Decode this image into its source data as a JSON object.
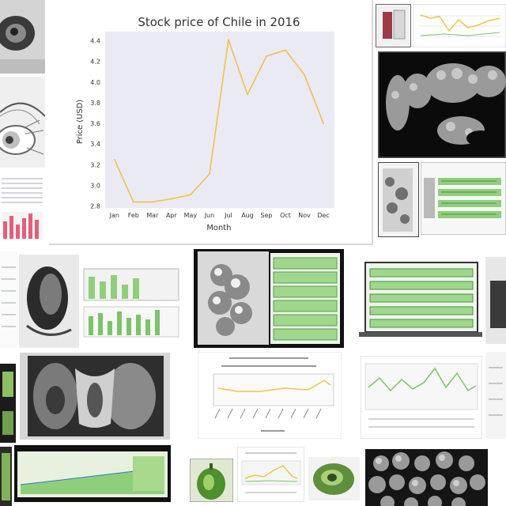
{
  "chart_data": {
    "type": "line",
    "title": "Stock price of Chile in 2016",
    "xlabel": "Month",
    "ylabel": "Price (USD)",
    "categories": [
      "Jan",
      "Feb",
      "Mar",
      "Apr",
      "May",
      "Jun",
      "Jul",
      "Aug",
      "Sep",
      "Oct",
      "Nov",
      "Dec"
    ],
    "series": [
      {
        "values": [
          3.25,
          2.84,
          2.84,
          2.87,
          2.91,
          3.11,
          4.41,
          3.88,
          4.25,
          4.31,
          4.07,
          3.6
        ]
      }
    ],
    "yticks": [
      2.8,
      3.0,
      3.2,
      3.4,
      3.6,
      3.8,
      4.0,
      4.2,
      4.4
    ],
    "ytick_labels": [
      "2.8",
      "3.0",
      "3.2",
      "3.4",
      "3.6",
      "3.8",
      "4.0",
      "4.2",
      "4.4"
    ],
    "ylim": [
      2.78,
      4.49
    ],
    "grid": false,
    "legend": "none",
    "colors": {
      "line": "#efc14d",
      "plot_background": "#eaeaf4"
    }
  },
  "collage": {
    "colors": {
      "accent_green": "#7cc46a",
      "accent_yellow": "#e9c84a",
      "accent_pink": "#e0607a"
    }
  }
}
